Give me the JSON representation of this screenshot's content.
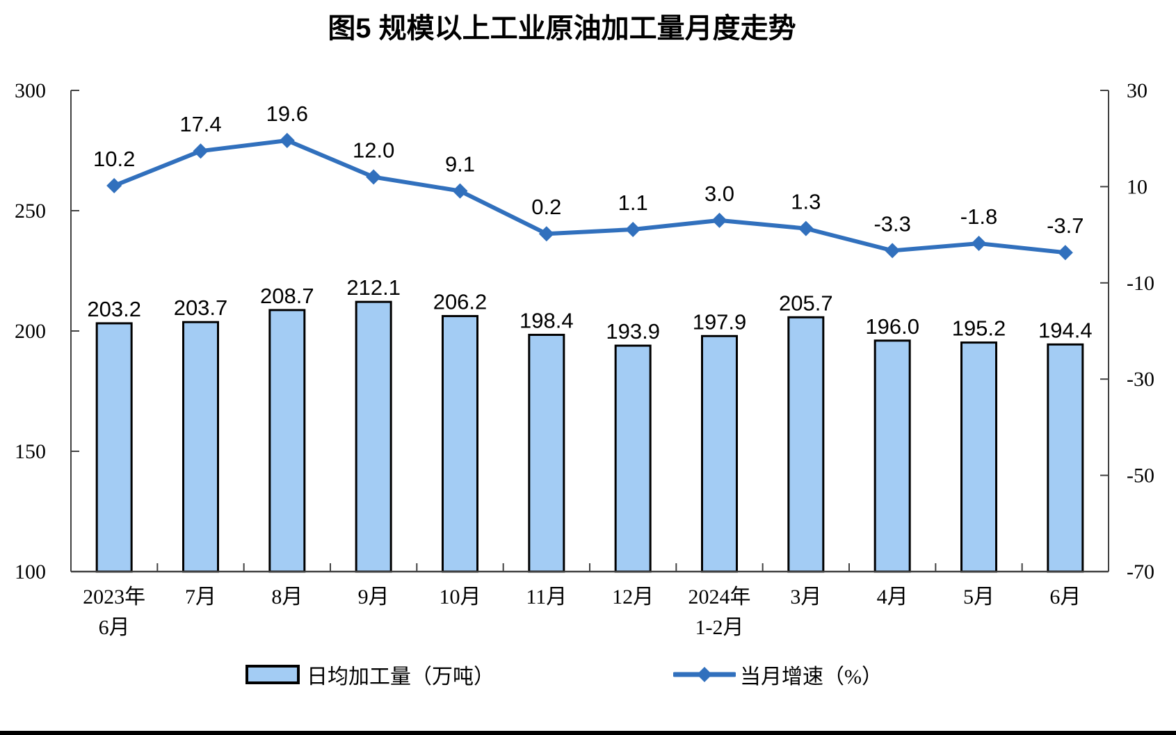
{
  "title": "图5  规模以上工业原油加工量月度走势",
  "chart_data": {
    "type": "bar",
    "subtype": "bar+line combo, dual y-axis",
    "categories": [
      "2023年\n6月",
      "7月",
      "8月",
      "9月",
      "10月",
      "11月",
      "12月",
      "2024年\n1-2月",
      "3月",
      "4月",
      "5月",
      "6月"
    ],
    "series": [
      {
        "name": "日均加工量（万吨）",
        "type": "bar",
        "axis": "left",
        "values": [
          203.2,
          203.7,
          208.7,
          212.1,
          206.2,
          198.4,
          193.9,
          197.9,
          205.7,
          196.0,
          195.2,
          194.4
        ]
      },
      {
        "name": "当月增速（%）",
        "type": "line",
        "axis": "right",
        "marker": "diamond",
        "values": [
          10.2,
          17.4,
          19.6,
          12.0,
          9.1,
          0.2,
          1.1,
          3.0,
          1.3,
          -3.3,
          -1.8,
          -3.7
        ]
      }
    ],
    "title": "图5  规模以上工业原油加工量月度走势",
    "xlabel": "",
    "ylabel_left": "",
    "ylabel_right": "",
    "left_axis": {
      "min": 100,
      "max": 300,
      "ticks": [
        300,
        250,
        200,
        150,
        100
      ]
    },
    "right_axis": {
      "min": -70,
      "max": 30,
      "ticks": [
        30,
        10,
        -10,
        -30,
        -50,
        -70
      ]
    },
    "grid": false,
    "legend_position": "bottom"
  },
  "legend": {
    "bar_label": "日均加工量（万吨）",
    "line_label": "当月增速（%）"
  },
  "colors": {
    "bar_fill": "#A3CCF4",
    "bar_border": "#000000",
    "line": "#3170BD",
    "axis": "#404040",
    "text": "#000000",
    "bottom_rule": "#000000"
  }
}
